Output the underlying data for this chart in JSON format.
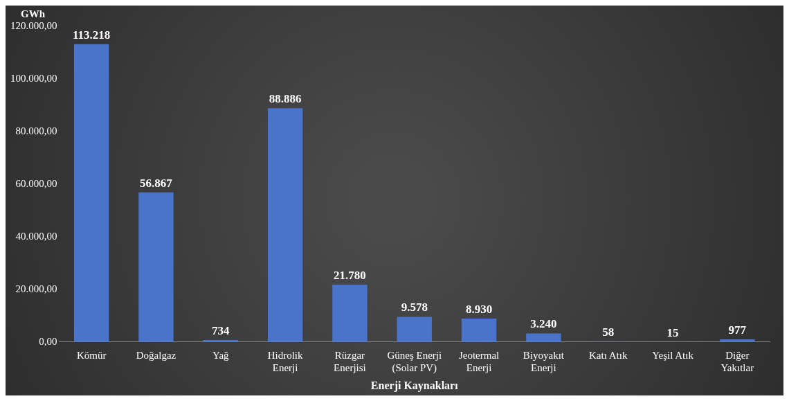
{
  "chart_data": {
    "type": "bar",
    "ylabel": "GWh",
    "xlabel": "Enerji Kaynakları",
    "categories": [
      "Kömür",
      "Doğalgaz",
      "Yağ",
      "Hidrolik\nEnerji",
      "Rüzgar\nEnerjisi",
      "Güneş Enerji\n(Solar PV)",
      "Jeotermal\nEnerji",
      "Biyoyakıt\nEnerji",
      "Katı Atık",
      "Yeşil Atık",
      "Diğer\nYakıtlar"
    ],
    "values": [
      113218,
      56867,
      734,
      88886,
      21780,
      9578,
      8930,
      3240,
      58,
      15,
      977
    ],
    "value_labels": [
      "113.218",
      "56.867",
      "734",
      "88.886",
      "21.780",
      "9.578",
      "8.930",
      "3.240",
      "58",
      "15",
      "977"
    ],
    "color": "#4a74cc",
    "ylim": [
      0,
      120000
    ],
    "yticks": [
      {
        "value": 0,
        "label": "0,00"
      },
      {
        "value": 20000,
        "label": "20.000,00"
      },
      {
        "value": 40000,
        "label": "40.000,00"
      },
      {
        "value": 60000,
        "label": "60.000,00"
      },
      {
        "value": 80000,
        "label": "80.000,00"
      },
      {
        "value": 100000,
        "label": "100.000,00"
      },
      {
        "value": 120000,
        "label": "120.000,00"
      }
    ],
    "grid": false,
    "legend": false
  }
}
